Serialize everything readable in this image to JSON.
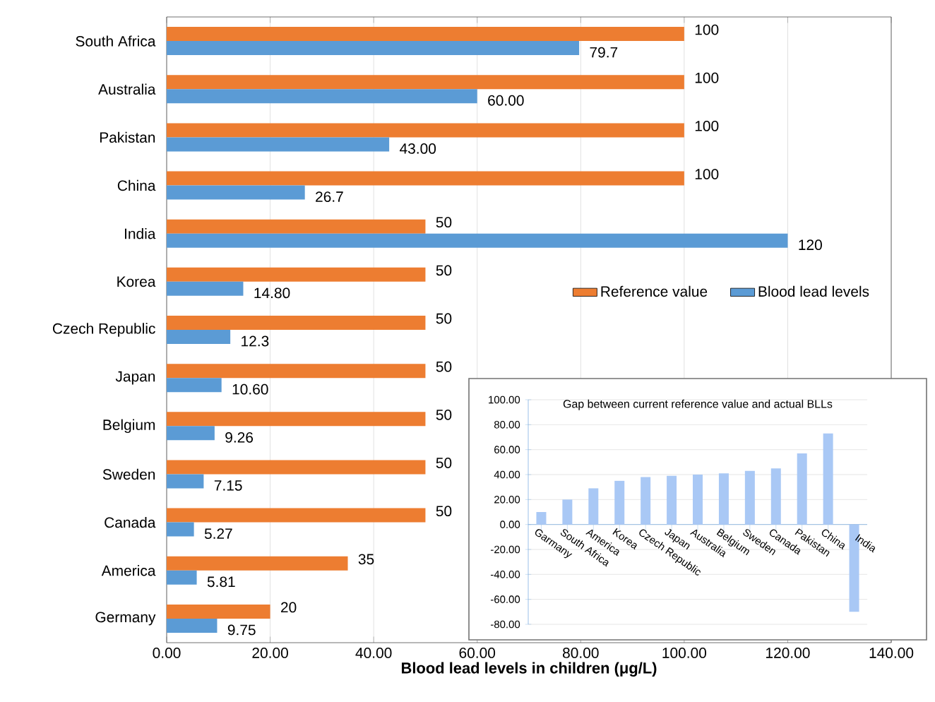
{
  "chart_data": [
    {
      "type": "bar",
      "orientation": "horizontal",
      "categories": [
        "South Africa",
        "Australia",
        "Pakistan",
        "China",
        "India",
        "Korea",
        "Czech Republic",
        "Japan",
        "Belgium",
        "Sweden",
        "Canada",
        "America",
        "Germany"
      ],
      "series": [
        {
          "name": "Reference value",
          "color": "#ed7d31",
          "values": [
            100,
            100,
            100,
            100,
            50,
            50,
            50,
            50,
            50,
            50,
            50,
            35,
            20
          ],
          "value_labels": [
            "100",
            "100",
            "100",
            "100",
            "50",
            "50",
            "50",
            "50",
            "50",
            "50",
            "50",
            "35",
            "20"
          ]
        },
        {
          "name": "Blood lead levels",
          "color": "#5b9bd5",
          "values": [
            79.7,
            60,
            43,
            26.7,
            120,
            14.8,
            12.3,
            10.6,
            9.26,
            7.15,
            5.27,
            5.81,
            9.75
          ],
          "value_labels": [
            "79.7",
            "60.00",
            "43.00",
            "26.7",
            "120",
            "14.80",
            "12.3",
            "10.60",
            "9.26",
            "7.15",
            "5.27",
            "5.81",
            "9.75"
          ]
        }
      ],
      "xlabel": "Blood lead levels in children (μg/L)",
      "xlim": [
        0,
        140
      ],
      "xticks": [
        {
          "value": 0,
          "label": "0.00"
        },
        {
          "value": 20,
          "label": "20.00"
        },
        {
          "value": 40,
          "label": "40.00"
        },
        {
          "value": 60,
          "label": "60.00"
        },
        {
          "value": 80,
          "label": "80.00"
        },
        {
          "value": 100,
          "label": "100.00"
        },
        {
          "value": 120,
          "label": "120.00"
        },
        {
          "value": 140,
          "label": "140.00"
        }
      ],
      "grid": "x",
      "legend": "right"
    },
    {
      "type": "bar",
      "title": "Gap between current reference value and actual BLLs",
      "categories": [
        "Garmany",
        "South Africa",
        "America",
        "Korea",
        "Czech Republic",
        "Japan",
        "Australia",
        "Belgium",
        "Sweden",
        "Canada",
        "Pakistan",
        "China",
        "India"
      ],
      "values": [
        10,
        20,
        29,
        35,
        38,
        39,
        40,
        41,
        43,
        45,
        57,
        73,
        -70
      ],
      "color": "#a9c8f5",
      "ylim": [
        -80,
        100
      ],
      "yticks": [
        {
          "value": -80,
          "label": "-80.00"
        },
        {
          "value": -60,
          "label": "-60.00"
        },
        {
          "value": -40,
          "label": "-40.00"
        },
        {
          "value": -20,
          "label": "-20.00"
        },
        {
          "value": 0,
          "label": "0.00"
        },
        {
          "value": 20,
          "label": "20.00"
        },
        {
          "value": 40,
          "label": "40.00"
        },
        {
          "value": 60,
          "label": "60.00"
        },
        {
          "value": 80,
          "label": "80.00"
        },
        {
          "value": 100,
          "label": "100.00"
        }
      ],
      "grid": "y"
    }
  ]
}
